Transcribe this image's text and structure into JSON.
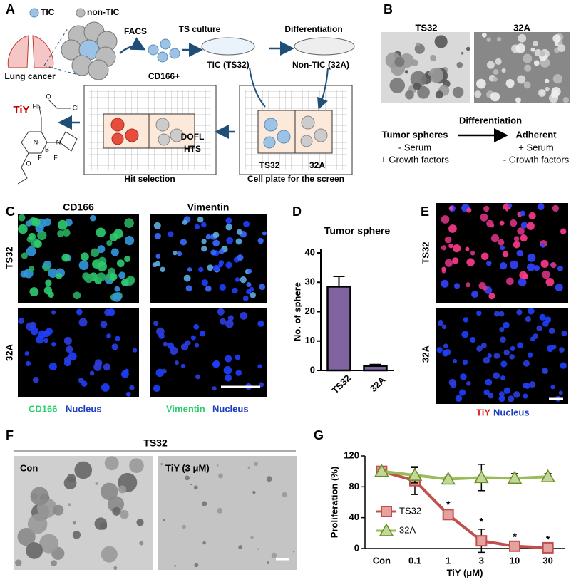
{
  "panels": {
    "labels": [
      "A",
      "B",
      "C",
      "D",
      "E",
      "F",
      "G"
    ]
  },
  "panel_a": {
    "legend": [
      "TIC",
      "non-TIC"
    ],
    "lung": "Lung cancer",
    "facs": "FACS",
    "cd166": "CD166+",
    "ts_culture": "TS culture",
    "tic": "TIC (TS32)",
    "differentiation": "Differentiation",
    "non_tic": "Non-TIC (32A)",
    "compound": "TiY",
    "dofl": "DOFL",
    "hts": "HTS",
    "plate_labels": [
      "TS32",
      "32A"
    ],
    "hit": "Hit selection",
    "plate": "Cell plate for the screen",
    "atoms": [
      "O",
      "HN",
      "Cl",
      "N",
      "N",
      "B",
      "F",
      "F",
      "O"
    ]
  },
  "panel_b": {
    "images": [
      "TS32",
      "32A"
    ],
    "arrow": "Differentiation",
    "left": {
      "title": "Tumor spheres",
      "lines": [
        "- Serum",
        "+ Growth factors"
      ]
    },
    "right": {
      "title": "Adherent",
      "lines": [
        "+ Serum",
        "- Growth factors"
      ]
    }
  },
  "panel_c": {
    "columns": [
      "CD166",
      "Vimentin"
    ],
    "rows": [
      "TS32",
      "32A"
    ],
    "legends": [
      [
        "CD166",
        "Nucleus"
      ],
      [
        "Vimentin",
        "Nucleus"
      ]
    ]
  },
  "panel_e": {
    "title": "TiY",
    "rows": [
      "TS32",
      "32A"
    ],
    "legend": [
      "TiY",
      "Nucleus"
    ]
  },
  "panel_f": {
    "title": "TS32",
    "images": [
      "Con",
      "TiY (3 μM)"
    ]
  },
  "chart_data": [
    {
      "type": "bar",
      "title": "Tumor sphere",
      "y_label": "No. of sphere",
      "categories": [
        "TS32",
        "32A"
      ],
      "values": [
        28.5,
        1.5
      ],
      "errors": [
        3.5,
        0.5
      ],
      "color": "#8064a2",
      "ylim": [
        0,
        40
      ],
      "yticks": [
        0,
        10,
        20,
        30,
        40
      ]
    },
    {
      "type": "line",
      "y_label": "Proliferation (%)",
      "x_label": "TiY (μM)",
      "categories": [
        "Con",
        "0.1",
        "1",
        "3",
        "10",
        "30"
      ],
      "ylim": [
        0,
        120
      ],
      "yticks": [
        0,
        40,
        80,
        120
      ],
      "series": [
        {
          "name": "TS32",
          "color": "#c0504d",
          "marker": "square",
          "values": [
            100,
            88,
            44,
            10,
            3,
            1
          ],
          "errors": [
            3,
            18,
            3,
            15,
            2,
            1
          ]
        },
        {
          "name": "32A",
          "color": "#9bbb59",
          "marker": "triangle",
          "values": [
            100,
            95,
            90,
            92,
            91,
            93
          ],
          "errors": [
            2,
            10,
            3,
            17,
            6,
            4
          ]
        }
      ],
      "significance": [
        null,
        null,
        "*",
        "*",
        "*",
        "*"
      ]
    }
  ]
}
